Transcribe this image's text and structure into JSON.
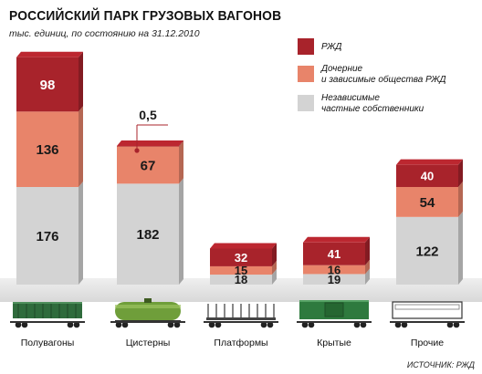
{
  "header": {
    "title": "РОССИЙСКИЙ ПАРК ГРУЗОВЫХ ВАГОНОВ",
    "subtitle": "тыс. единиц, по состоянию на 31.12.2010",
    "source": "ИСТОЧНИК: РЖД"
  },
  "colors": {
    "rzd": "#a8232b",
    "subsidiaries": "#e8846a",
    "private": "#d3d3d3"
  },
  "legend": [
    {
      "key": "rzd",
      "label_lines": [
        "РЖД"
      ]
    },
    {
      "key": "subsidiaries",
      "label_lines": [
        "Дочерние",
        "и зависимые общества РЖД"
      ]
    },
    {
      "key": "private",
      "label_lines": [
        "Независимые",
        "частные собственники"
      ]
    }
  ],
  "chart_data": {
    "type": "bar",
    "stacked": true,
    "categories": [
      "Полувагоны",
      "Цистерны",
      "Платформы",
      "Крытые",
      "Прочие"
    ],
    "series": [
      {
        "name": "Независимые частные собственники",
        "key": "private",
        "values": [
          176,
          182,
          18,
          19,
          122
        ]
      },
      {
        "name": "Дочерние и зависимые общества РЖД",
        "key": "subsidiaries",
        "values": [
          136,
          67,
          15,
          16,
          54
        ]
      },
      {
        "name": "РЖД",
        "key": "rzd",
        "values": [
          98,
          0.5,
          32,
          41,
          40
        ]
      }
    ],
    "annotations": [
      {
        "category": "Цистерны",
        "series": "РЖД",
        "text": "0,5"
      }
    ],
    "legend_position": "top-right",
    "grid": false
  },
  "icons": [
    "gondola-car-icon",
    "tank-car-icon",
    "flatcar-icon",
    "boxcar-icon",
    "other-car-icon"
  ]
}
